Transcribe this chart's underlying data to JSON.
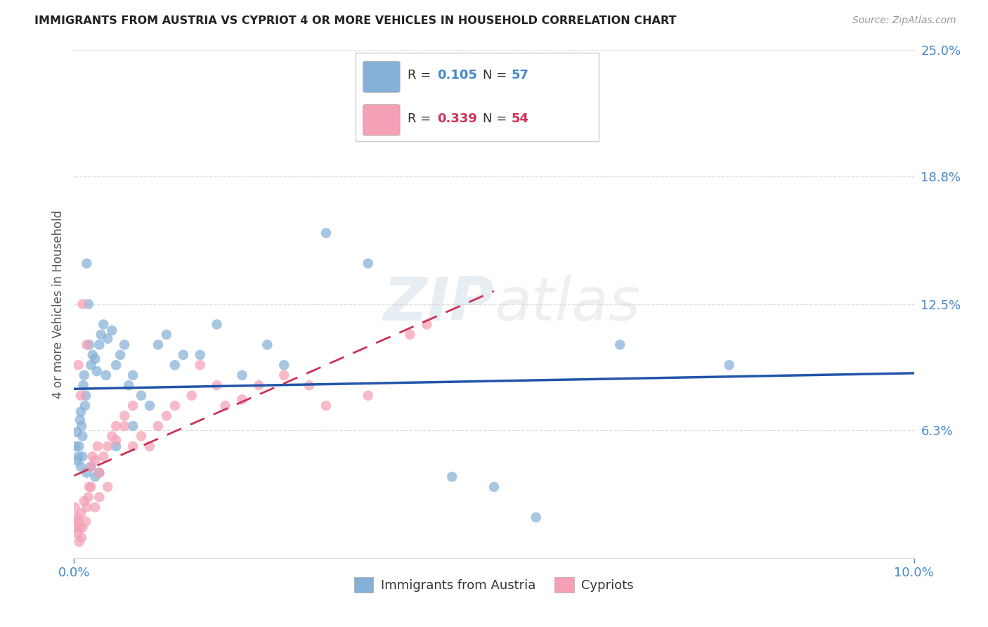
{
  "title": "IMMIGRANTS FROM AUSTRIA VS CYPRIOT 4 OR MORE VEHICLES IN HOUSEHOLD CORRELATION CHART",
  "source": "Source: ZipAtlas.com",
  "ylabel": "4 or more Vehicles in Household",
  "xlim": [
    0.0,
    10.0
  ],
  "ylim": [
    0.0,
    25.0
  ],
  "y_ticks": [
    6.3,
    12.5,
    18.8,
    25.0
  ],
  "x_ticks": [
    0.0,
    10.0
  ],
  "x_tick_labels": [
    "0.0%",
    "10.0%"
  ],
  "y_tick_labels": [
    "6.3%",
    "12.5%",
    "18.8%",
    "25.0%"
  ],
  "R_blue": 0.105,
  "N_blue": 57,
  "R_pink": 0.339,
  "N_pink": 54,
  "legend_label1": "Immigrants from Austria",
  "legend_label2": "Cypriots",
  "color_blue": "#85B0D8",
  "color_pink": "#F4A0B5",
  "trend_blue_color": "#2255AA",
  "trend_pink_color": "#CC3355",
  "watermark_color": "#C8D8E8",
  "title_color": "#222222",
  "source_color": "#999999",
  "axis_color": "#4488CC",
  "grid_color": "#DDDDDD",
  "blue_x": [
    0.02,
    0.03,
    0.04,
    0.05,
    0.06,
    0.07,
    0.08,
    0.09,
    0.1,
    0.11,
    0.12,
    0.13,
    0.14,
    0.15,
    0.17,
    0.18,
    0.2,
    0.22,
    0.25,
    0.27,
    0.3,
    0.32,
    0.35,
    0.38,
    0.4,
    0.45,
    0.5,
    0.55,
    0.6,
    0.65,
    0.7,
    0.8,
    0.9,
    1.0,
    1.1,
    1.2,
    1.5,
    1.7,
    2.0,
    2.3,
    2.5,
    3.0,
    3.5,
    4.5,
    5.0,
    5.5,
    6.5,
    7.8,
    0.08,
    0.1,
    0.15,
    0.2,
    0.25,
    0.3,
    0.5,
    0.7,
    1.3
  ],
  "blue_y": [
    5.5,
    6.2,
    4.8,
    5.0,
    5.5,
    6.8,
    7.2,
    6.5,
    6.0,
    8.5,
    9.0,
    7.5,
    8.0,
    14.5,
    12.5,
    10.5,
    9.5,
    10.0,
    9.8,
    9.2,
    10.5,
    11.0,
    11.5,
    9.0,
    10.8,
    11.2,
    9.5,
    10.0,
    10.5,
    8.5,
    9.0,
    8.0,
    7.5,
    10.5,
    11.0,
    9.5,
    10.0,
    11.5,
    9.0,
    10.5,
    9.5,
    16.0,
    14.5,
    4.0,
    3.5,
    2.0,
    10.5,
    9.5,
    4.5,
    5.0,
    4.2,
    4.5,
    4.0,
    4.2,
    5.5,
    6.5,
    10.0
  ],
  "pink_x": [
    0.01,
    0.02,
    0.03,
    0.04,
    0.05,
    0.06,
    0.07,
    0.08,
    0.09,
    0.1,
    0.12,
    0.14,
    0.15,
    0.17,
    0.18,
    0.2,
    0.22,
    0.25,
    0.28,
    0.3,
    0.35,
    0.4,
    0.45,
    0.5,
    0.6,
    0.7,
    0.8,
    0.9,
    1.0,
    1.1,
    1.2,
    1.4,
    1.5,
    1.7,
    1.8,
    2.0,
    2.2,
    2.5,
    2.8,
    3.0,
    3.5,
    4.0,
    4.2,
    0.05,
    0.08,
    0.1,
    0.15,
    0.2,
    0.25,
    0.3,
    0.4,
    0.5,
    0.6,
    0.7
  ],
  "pink_y": [
    2.5,
    1.5,
    2.0,
    1.2,
    1.8,
    0.8,
    1.5,
    2.2,
    1.0,
    1.5,
    2.8,
    1.8,
    2.5,
    3.0,
    3.5,
    4.5,
    5.0,
    4.8,
    5.5,
    4.2,
    5.0,
    5.5,
    6.0,
    5.8,
    6.5,
    5.5,
    6.0,
    5.5,
    6.5,
    7.0,
    7.5,
    8.0,
    9.5,
    8.5,
    7.5,
    7.8,
    8.5,
    9.0,
    8.5,
    7.5,
    8.0,
    11.0,
    11.5,
    9.5,
    8.0,
    12.5,
    10.5,
    3.5,
    2.5,
    3.0,
    3.5,
    6.5,
    7.0,
    7.5
  ]
}
